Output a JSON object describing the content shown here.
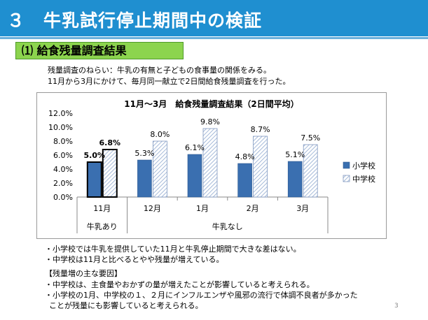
{
  "header": {
    "title": "３　牛乳試行停止期間中の検証",
    "color": "#1f8fd0"
  },
  "section": {
    "label": "⑴  給食残量調査結果",
    "color": "#8cd44e"
  },
  "intro": {
    "line1": "残量調査のねらい：牛乳の有無と子どもの食事量の関係をみる。",
    "line2": "11月から3月にかけて、毎月同一献立で2日間給食残量調査を行った。"
  },
  "chart_data": {
    "type": "bar",
    "title": "11月～3月　給食残量調査結果（2日間平均）",
    "categories": [
      "11月",
      "12月",
      "1月",
      "2月",
      "3月"
    ],
    "series": [
      {
        "name": "小学校",
        "values": [
          5.0,
          5.3,
          6.1,
          4.8,
          5.1
        ],
        "labels": [
          "5.0%",
          "5.3%",
          "6.1%",
          "4.8%",
          "5.1%"
        ],
        "color": "#3a6fb0"
      },
      {
        "name": "中学校",
        "values": [
          6.8,
          8.0,
          9.8,
          8.7,
          7.5
        ],
        "labels": [
          "6.8%",
          "8.0%",
          "9.8%",
          "8.7%",
          "7.5%"
        ],
        "color": "#c9d6ea"
      }
    ],
    "ylim": [
      0,
      12
    ],
    "yticks": [
      "0.0%",
      "2.0%",
      "4.0%",
      "6.0%",
      "8.0%",
      "10.0%",
      "12.0%"
    ],
    "group_labels": [
      "牛乳あり",
      "牛乳なし"
    ],
    "legend_position": "right",
    "grid": false
  },
  "notes": {
    "line1": "・小学校では牛乳を提供していた11月と牛乳停止期間で大きな差はない。",
    "line2": "・中学校は11月と比べるとやや残量が増えている。"
  },
  "factors": {
    "heading": "【残量増の主な要因】",
    "line1": "・中学校は、主食量やおかずの量が増えたことが影響していると考えられる。",
    "line2": "・小学校の1月、中学校の１、２月にインフルエンザや風邪の流行で体調不良者が多かった",
    "line3": "ことが残量にも影響していると考えられる。"
  },
  "page_number": "3"
}
